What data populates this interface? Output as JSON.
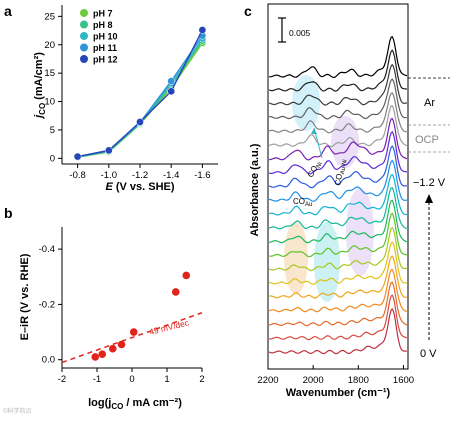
{
  "panel_a": {
    "letter": "a",
    "chart_data": {
      "type": "line",
      "x": [
        -0.8,
        -1.0,
        -1.2,
        -1.4,
        -1.6
      ],
      "series": [
        {
          "name": "pH 7",
          "color": "#6ccb3b",
          "values": [
            0.2,
            1.1,
            6.0,
            12.4,
            20.3
          ]
        },
        {
          "name": "pH 8",
          "color": "#3bc28b",
          "values": [
            0.2,
            1.2,
            6.1,
            12.8,
            20.7
          ]
        },
        {
          "name": "pH 10",
          "color": "#2fb6c4",
          "values": [
            0.3,
            1.3,
            6.2,
            13.2,
            21.1
          ]
        },
        {
          "name": "pH 11",
          "color": "#2f95d8",
          "values": [
            0.3,
            1.3,
            6.3,
            13.6,
            21.6
          ]
        },
        {
          "name": "pH 12",
          "color": "#2645b9",
          "values": [
            0.3,
            1.4,
            6.4,
            11.8,
            22.6
          ]
        }
      ],
      "xticks": [
        "-0.8",
        "-1.0",
        "-1.2",
        "-1.4",
        "-1.6"
      ],
      "yticks": [
        "0",
        "5",
        "10",
        "15",
        "20",
        "25"
      ],
      "xlim": [
        -0.7,
        -1.7
      ],
      "ylim": [
        -1,
        27
      ],
      "xlabel_prefix": "E",
      "xlabel_rest": " (V vs. SHE)",
      "ylabel_prefix": "j",
      "ylabel_sub": "CO",
      "ylabel_rest": " (mA/cm²)"
    }
  },
  "panel_b": {
    "letter": "b",
    "chart_data": {
      "type": "scatter",
      "x": [
        -1.05,
        -0.85,
        -0.55,
        -0.3,
        0.05,
        1.25,
        1.55
      ],
      "y": [
        -0.01,
        -0.02,
        -0.04,
        -0.055,
        -0.1,
        -0.245,
        -0.305
      ],
      "color": "#e0241b",
      "fit_line": {
        "x": [
          -2,
          2
        ],
        "y": [
          0.01,
          -0.17
        ],
        "style": "dashed"
      },
      "fit_label": "49 mV/dec",
      "xticks": [
        "-2",
        "-1",
        "0",
        "1",
        "2"
      ],
      "yticks": [
        "-0.4",
        "-0.2",
        "0.0"
      ],
      "xlim": [
        -2,
        2
      ],
      "ylim": [
        -0.48,
        0.03
      ],
      "xlabel_pre": "log(j",
      "xlabel_sub": "CO",
      "xlabel_post": " / mA cm⁻²)",
      "ylabel": "E–iR (V vs. RHE)"
    }
  },
  "panel_c": {
    "letter": "c",
    "chart_data": {
      "type": "line",
      "xticks": [
        "2200",
        "2000",
        "1800",
        "1600"
      ],
      "xlim": [
        2200,
        1580
      ],
      "xlabel": "Wavenumber (cm⁻¹)",
      "ylabel": "Absorbance (a.u.)",
      "scale_bar_label": "0.005",
      "annotations": {
        "ar": "Ar",
        "ocp": "OCP",
        "potential_top": "−1.2 V",
        "potential_bottom": "0 V",
        "co_au": "CO",
        "co_au_sub": "Au",
        "co_ni": "CO",
        "co_ni_sub": "Ni",
        "co_auni": "CO",
        "co_auni_sub": "Au-Ni"
      },
      "series": [
        {
          "group": "Ar",
          "color": "#000000"
        },
        {
          "group": "Ar",
          "color": "#1e1e1e"
        },
        {
          "group": "Ar",
          "color": "#3c3c3c"
        },
        {
          "group": "OCP",
          "color": "#5e5e5e"
        },
        {
          "group": "OCP",
          "color": "#808080"
        },
        {
          "group": "OCP",
          "color": "#9e9e9e"
        },
        {
          "group": "potential",
          "color": "#7a1fb5"
        },
        {
          "group": "potential",
          "color": "#5b2bd6"
        },
        {
          "group": "potential",
          "color": "#2b5be0"
        },
        {
          "group": "potential",
          "color": "#1e90e8"
        },
        {
          "group": "potential",
          "color": "#12b3cf"
        },
        {
          "group": "potential",
          "color": "#13b89a"
        },
        {
          "group": "potential",
          "color": "#1db85c"
        },
        {
          "group": "potential",
          "color": "#5cc22a"
        },
        {
          "group": "potential",
          "color": "#a8c81e"
        },
        {
          "group": "potential",
          "color": "#e2c21a"
        },
        {
          "group": "potential",
          "color": "#f0a51a"
        },
        {
          "group": "potential",
          "color": "#ee8a1f"
        },
        {
          "group": "potential",
          "color": "#e56a2a"
        },
        {
          "group": "potential",
          "color": "#d84c3e"
        },
        {
          "group": "potential",
          "color": "#c03040"
        }
      ]
    }
  },
  "watermark": "©科学前沿"
}
